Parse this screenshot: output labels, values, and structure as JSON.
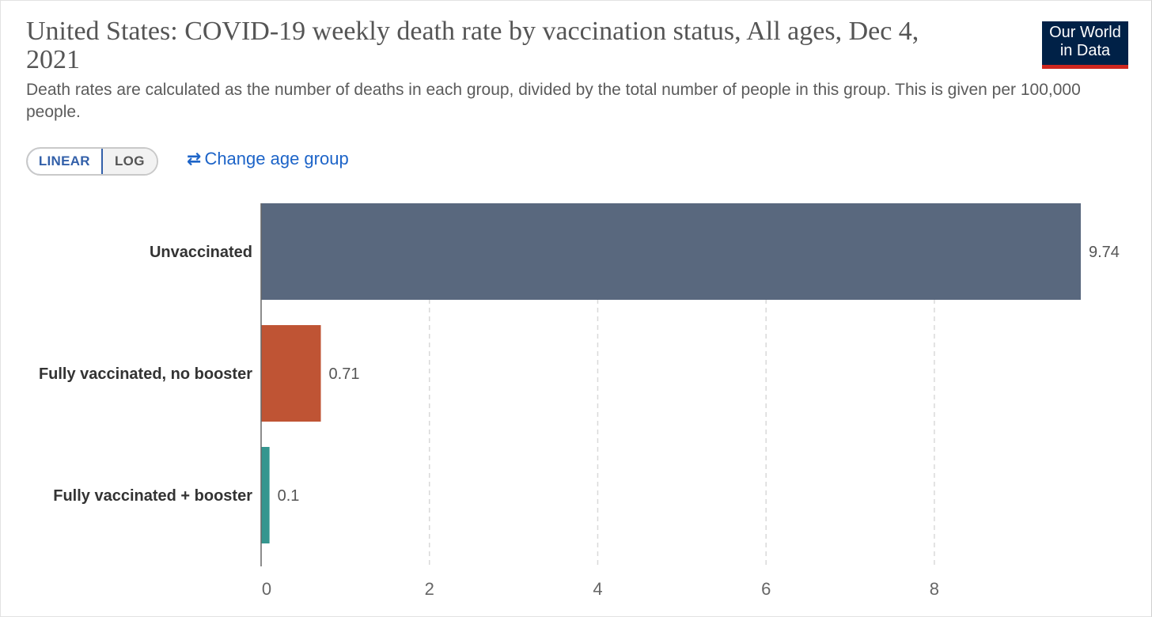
{
  "header": {
    "title": "United States: COVID-19 weekly death rate by vaccination status, All ages, Dec 4, 2021",
    "subtitle": "Death rates are calculated as the number of deaths in each group, divided by the total number of people in this group. This is given per 100,000 people.",
    "logo_line1": "Our World",
    "logo_line2": "in Data"
  },
  "controls": {
    "linear_label": "LINEAR",
    "log_label": "LOG",
    "change_age_icon": "⇄",
    "change_age_label": "Change age group"
  },
  "colors": {
    "logo_bg": "#002147",
    "logo_accent": "#ce261e",
    "link": "#1d64c8"
  },
  "chart_data": {
    "type": "bar",
    "orientation": "horizontal",
    "categories": [
      "Unvaccinated",
      "Fully vaccinated, no booster",
      "Fully vaccinated + booster"
    ],
    "values": [
      9.74,
      0.71,
      0.1
    ],
    "value_labels": [
      "9.74",
      "0.71",
      "0.1"
    ],
    "colors": [
      "#59687e",
      "#bf5434",
      "#35968f"
    ],
    "xticks": [
      0,
      2,
      4,
      6,
      8
    ],
    "xlim": [
      0,
      9.74
    ],
    "grid": "vertical dashed",
    "scale": "linear"
  }
}
